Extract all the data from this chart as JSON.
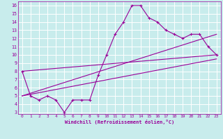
{
  "xlabel": "Windchill (Refroidissement éolien,°C)",
  "bg_color": "#c8ecec",
  "line_color": "#990099",
  "grid_color": "#ffffff",
  "xlim": [
    -0.5,
    23.5
  ],
  "ylim": [
    2.8,
    16.5
  ],
  "xticks": [
    0,
    1,
    2,
    3,
    4,
    5,
    6,
    7,
    8,
    9,
    10,
    11,
    12,
    13,
    14,
    15,
    16,
    17,
    18,
    19,
    20,
    21,
    22,
    23
  ],
  "yticks": [
    3,
    4,
    5,
    6,
    7,
    8,
    9,
    10,
    11,
    12,
    13,
    14,
    15,
    16
  ],
  "line1_x": [
    0,
    1,
    2,
    3,
    4,
    5,
    6,
    7,
    8,
    9,
    10,
    11,
    12,
    13,
    14,
    15,
    16,
    17,
    18,
    19,
    20,
    21,
    22,
    23
  ],
  "line1_y": [
    8,
    5,
    4.5,
    5,
    4.5,
    3,
    4.5,
    4.5,
    4.5,
    7.5,
    10,
    12.5,
    14,
    16,
    16,
    14.5,
    14,
    13,
    12.5,
    12,
    12.5,
    12.5,
    11,
    10
  ],
  "line2_x": [
    0,
    23
  ],
  "line2_y": [
    8,
    10
  ],
  "line3_x": [
    0,
    23
  ],
  "line3_y": [
    5,
    12.5
  ],
  "line4_x": [
    0,
    23
  ],
  "line4_y": [
    5,
    9.5
  ]
}
